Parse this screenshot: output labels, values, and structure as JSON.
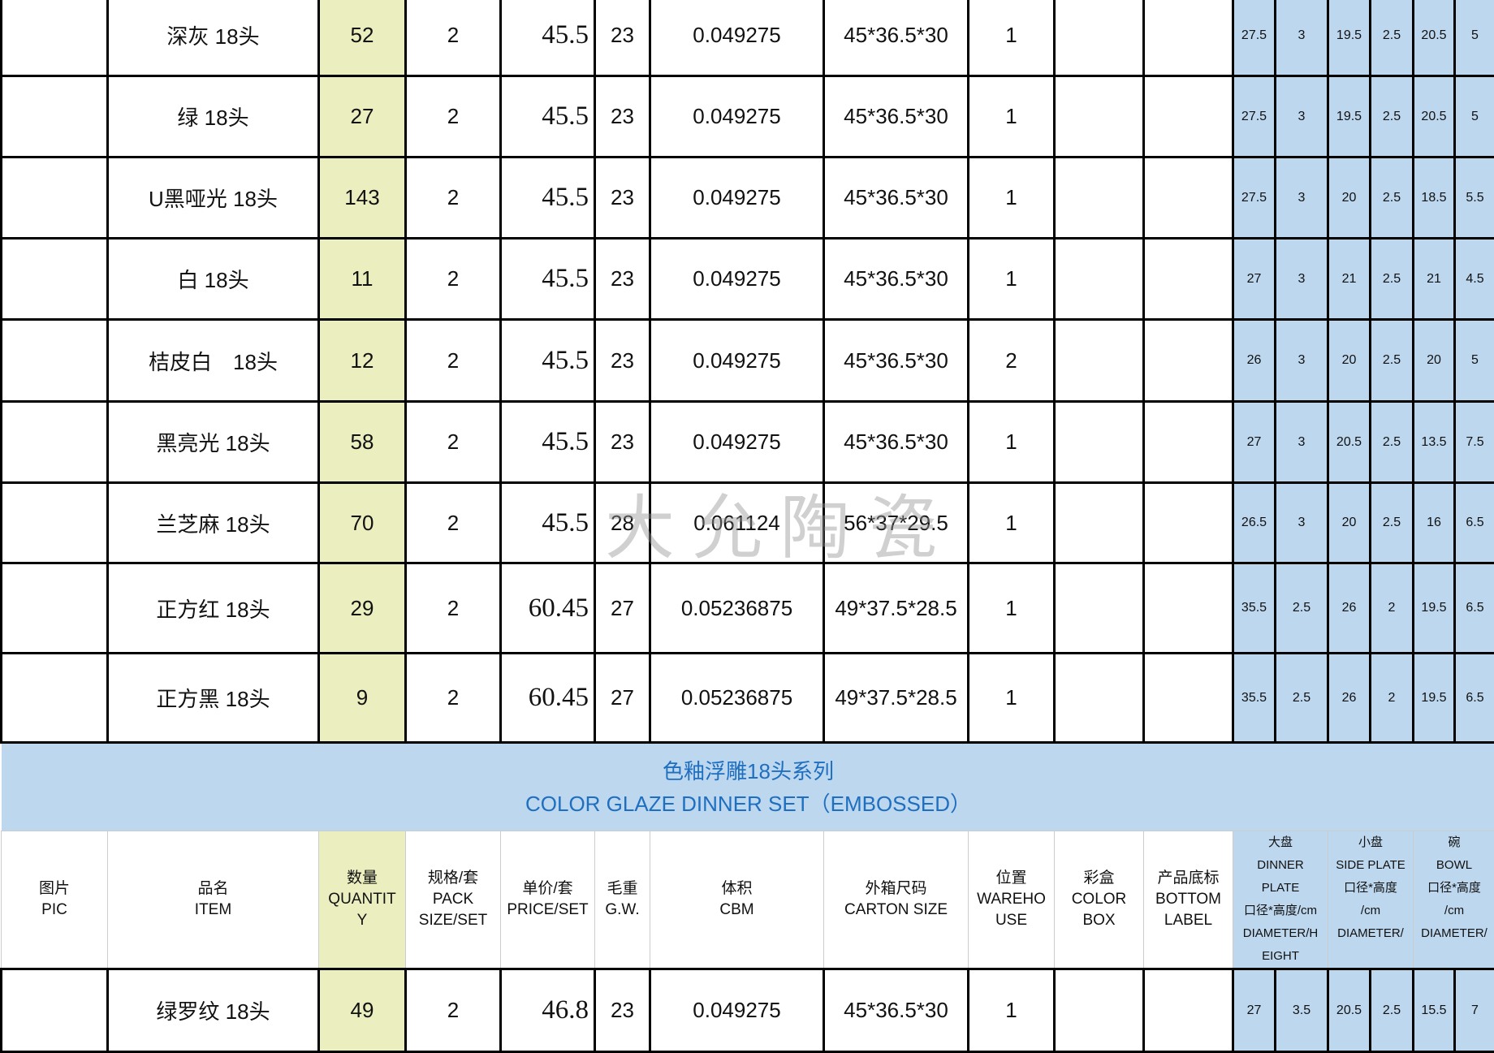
{
  "watermark": "大允陶瓷",
  "colors": {
    "dimension_bg": "#bdd7ee",
    "quantity_bg": "#ebeebf",
    "band_text": "#1f6fc0"
  },
  "rows_top": [
    {
      "item": "深灰 18头",
      "qty": "52",
      "pack": "2",
      "price": "45.5",
      "gw": "23",
      "cbm": "0.049275",
      "carton": "45*36.5*30",
      "warehouse": "1",
      "color_box": false,
      "label": true,
      "glaze": "#1f2630",
      "shape": "round",
      "dims": [
        "27.5",
        "3",
        "19.5",
        "2.5",
        "20.5",
        "5"
      ]
    },
    {
      "item": "绿 18头",
      "qty": "27",
      "pack": "2",
      "price": "45.5",
      "gw": "23",
      "cbm": "0.049275",
      "carton": "45*36.5*30",
      "warehouse": "1",
      "color_box": false,
      "label": true,
      "glaze": "#3e6a3c",
      "shape": "round",
      "dims": [
        "27.5",
        "3",
        "19.5",
        "2.5",
        "20.5",
        "5"
      ]
    },
    {
      "item": "U黑哑光 18头",
      "qty": "143",
      "pack": "2",
      "price": "45.5",
      "gw": "23",
      "cbm": "0.049275",
      "carton": "45*36.5*30",
      "warehouse": "1",
      "color_box": true,
      "label": true,
      "glaze": "#111",
      "shape": "round",
      "dims": [
        "27.5",
        "3",
        "20",
        "2.5",
        "18.5",
        "5.5"
      ]
    },
    {
      "item": "白 18头",
      "qty": "11",
      "pack": "2",
      "price": "45.5",
      "gw": "23",
      "cbm": "0.049275",
      "carton": "45*36.5*30",
      "warehouse": "1",
      "color_box": false,
      "label": true,
      "glaze": "#eeeae2",
      "shape": "round",
      "dims": [
        "27",
        "3",
        "21",
        "2.5",
        "21",
        "4.5"
      ]
    },
    {
      "item": "桔皮白　18头",
      "qty": "12",
      "pack": "2",
      "price": "45.5",
      "gw": "23",
      "cbm": "0.049275",
      "carton": "45*36.5*30",
      "warehouse": "2",
      "color_box": false,
      "label": true,
      "glaze": "#f2f2f0",
      "shape": "round",
      "dims": [
        "26",
        "3",
        "20",
        "2.5",
        "20",
        "5"
      ]
    },
    {
      "item": "黑亮光 18头",
      "qty": "58",
      "pack": "2",
      "price": "45.5",
      "gw": "23",
      "cbm": "0.049275",
      "carton": "45*36.5*30",
      "warehouse": "1",
      "color_box": false,
      "label": true,
      "glaze": "#0c0c0c",
      "shape": "round",
      "dims": [
        "27",
        "3",
        "20.5",
        "2.5",
        "13.5",
        "7.5"
      ]
    },
    {
      "item": "兰芝麻 18头",
      "qty": "70",
      "pack": "2",
      "price": "45.5",
      "gw": "28",
      "cbm": "0.061124",
      "carton": "56*37*29.5",
      "warehouse": "1",
      "color_box": false,
      "label": false,
      "glaze": "#b9c6da",
      "shape": "round",
      "dims": [
        "26.5",
        "3",
        "20",
        "2.5",
        "16",
        "6.5"
      ]
    },
    {
      "item": "正方红 18头",
      "qty": "29",
      "pack": "2",
      "price": "60.45",
      "gw": "27",
      "cbm": "0.05236875",
      "carton": "49*37.5*28.5",
      "warehouse": "1",
      "color_box": false,
      "label": false,
      "glaze": "#b01e2a",
      "shape": "square",
      "dims": [
        "35.5",
        "2.5",
        "26",
        "2",
        "19.5",
        "6.5"
      ]
    },
    {
      "item": "正方黑 18头",
      "qty": "9",
      "pack": "2",
      "price": "60.45",
      "gw": "27",
      "cbm": "0.05236875",
      "carton": "49*37.5*28.5",
      "warehouse": "1",
      "color_box": false,
      "label": true,
      "glaze": "#111",
      "shape": "square",
      "dims": [
        "35.5",
        "2.5",
        "26",
        "2",
        "19.5",
        "6.5"
      ]
    }
  ],
  "band": {
    "title_cn": "色釉浮雕18头系列",
    "title_en": "COLOR GLAZE DINNER SET（EMBOSSED）"
  },
  "header": {
    "pic": [
      "图片",
      "PIC"
    ],
    "item": [
      "品名",
      "ITEM"
    ],
    "qty": [
      "数量",
      "QUANTIT",
      "Y"
    ],
    "pack": [
      "规格/套",
      "PACK",
      "SIZE/SET"
    ],
    "price": [
      "单价/套",
      "PRICE/SET"
    ],
    "gw": [
      "毛重",
      "G.W."
    ],
    "cbm": [
      "体积",
      "CBM"
    ],
    "carton": [
      "外箱尺码",
      "CARTON SIZE"
    ],
    "warehouse": [
      "位置",
      "WAREHO",
      "USE"
    ],
    "color_box": [
      "彩盒",
      "COLOR",
      "BOX"
    ],
    "label": [
      "产品底标",
      "BOTTOM",
      "LABEL"
    ],
    "dinner": [
      "大盘",
      "DINNER",
      "PLATE",
      "口径*高度/cm",
      "DIAMETER/H",
      "EIGHT"
    ],
    "side": [
      "小盘",
      "SIDE PLATE",
      "口径*高度",
      "/cm",
      "DIAMETER/"
    ],
    "bowl": [
      "碗",
      "BOWL",
      "口径*高度",
      "/cm",
      "DIAMETER/"
    ]
  },
  "rows_bottom": [
    {
      "item": "绿罗纹 18头",
      "qty": "49",
      "pack": "2",
      "price": "46.8",
      "gw": "23",
      "cbm": "0.049275",
      "carton": "45*36.5*30",
      "warehouse": "1",
      "color_box": true,
      "label": true,
      "glaze": "#a9b3a5",
      "shape": "round",
      "dims": [
        "27",
        "3.5",
        "20.5",
        "2.5",
        "15.5",
        "7"
      ]
    }
  ]
}
